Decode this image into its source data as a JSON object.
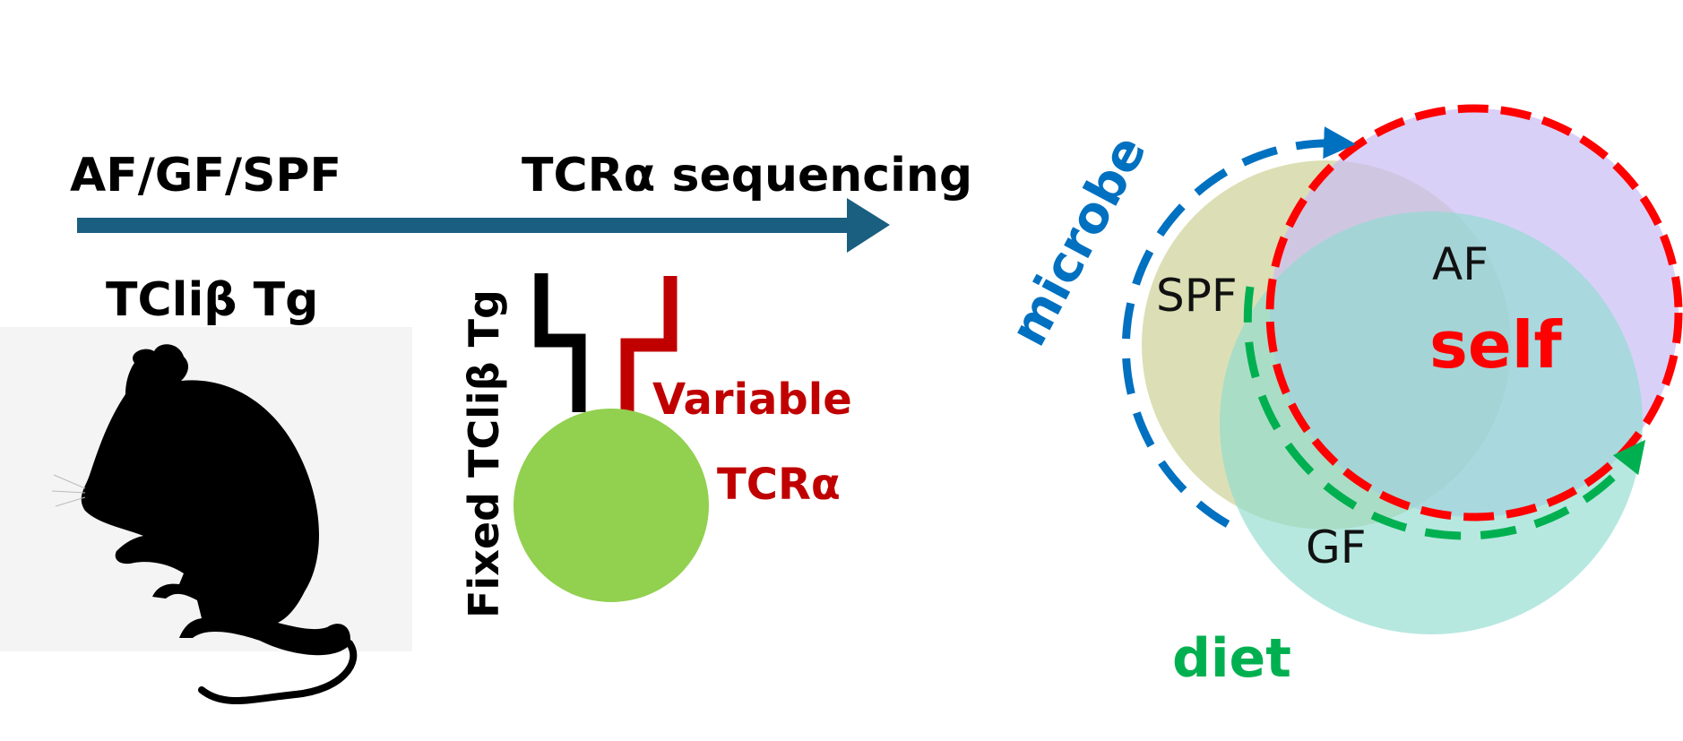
{
  "left": {
    "condition_label": "AF/GF/SPF",
    "method_label": "TCRα sequencing",
    "mouse_label": "TCliβ Tg",
    "fixed_chain_label": "Fixed TCliβ Tg",
    "variable_label_line1": "Variable",
    "variable_label_line2": "TCRα"
  },
  "venn": {
    "sets": [
      {
        "label": "SPF",
        "color": "#d6d9a8"
      },
      {
        "label": "AF",
        "color": "#d8cdf7"
      },
      {
        "label": "GF",
        "color": "#9fe3d8"
      }
    ],
    "self_label": "self",
    "microbe_label": "microbe",
    "diet_label": "diet"
  },
  "colors": {
    "arrow": "#1a5e80",
    "cell": "#92d050",
    "variable": "#c00000",
    "self": "#ff0000",
    "microbe": "#0070c0",
    "diet": "#00b050"
  }
}
